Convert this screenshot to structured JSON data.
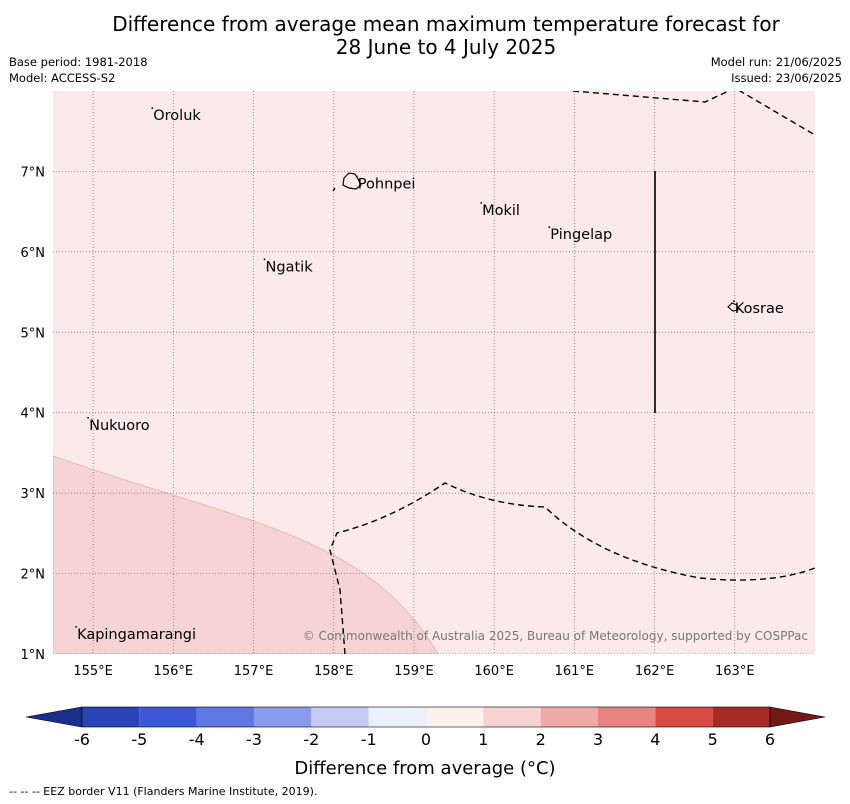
{
  "title": {
    "line1": "Difference from average mean maximum temperature forecast for",
    "line2": "28 June to 4 July 2025"
  },
  "meta": {
    "base_period": "Base period: 1981-2018",
    "model": "Model: ACCESS-S2",
    "model_run": "Model run: 21/06/2025",
    "issued": "Issued: 23/06/2025"
  },
  "map": {
    "lon_range": [
      154.5,
      164.0
    ],
    "lat_range": [
      1.0,
      8.0
    ],
    "lon_ticks": [
      "155°E",
      "156°E",
      "157°E",
      "158°E",
      "159°E",
      "160°E",
      "161°E",
      "162°E",
      "163°E"
    ],
    "lat_ticks": [
      "1°N",
      "2°N",
      "3°N",
      "4°N",
      "5°N",
      "6°N",
      "7°N"
    ],
    "places": [
      {
        "name": "Oroluk",
        "lon": 155.75,
        "lat": 7.7
      },
      {
        "name": "Pohnpei",
        "lon": 158.3,
        "lat": 6.85
      },
      {
        "name": "Mokil",
        "lon": 159.85,
        "lat": 6.52
      },
      {
        "name": "Pingelap",
        "lon": 160.7,
        "lat": 6.22
      },
      {
        "name": "Ngatik",
        "lon": 157.15,
        "lat": 5.82
      },
      {
        "name": "Kosrae",
        "lon": 163.0,
        "lat": 5.3
      },
      {
        "name": "Nukuoro",
        "lon": 154.95,
        "lat": 3.85
      },
      {
        "name": "Kapingamarangi",
        "lon": 154.8,
        "lat": 1.25
      }
    ],
    "fill_colors": {
      "zero_to_one": "#fbeae9",
      "one_to_two": "#f5d4d3"
    },
    "credit": "© Commonwealth of Australia 2025, Bureau of Meteorology, supported by COSPPac"
  },
  "colorbar": {
    "label": "Difference from average (°C)",
    "ticks": [
      "-6",
      "-5",
      "-4",
      "-3",
      "-2",
      "-1",
      "0",
      "1",
      "2",
      "3",
      "4",
      "5",
      "6"
    ],
    "colors": [
      "#1a2e8c",
      "#2a44b7",
      "#3b58db",
      "#5f78e3",
      "#8a9bec",
      "#c4cbf5",
      "#eceffc",
      "#fdf1f0",
      "#f7d3d2",
      "#efaaa8",
      "#e68481",
      "#d84a42",
      "#a82a24",
      "#731a16"
    ]
  },
  "footer": {
    "legend": "-- -- -- EEZ border V11 (Flanders Marine Institute, 2019)."
  }
}
